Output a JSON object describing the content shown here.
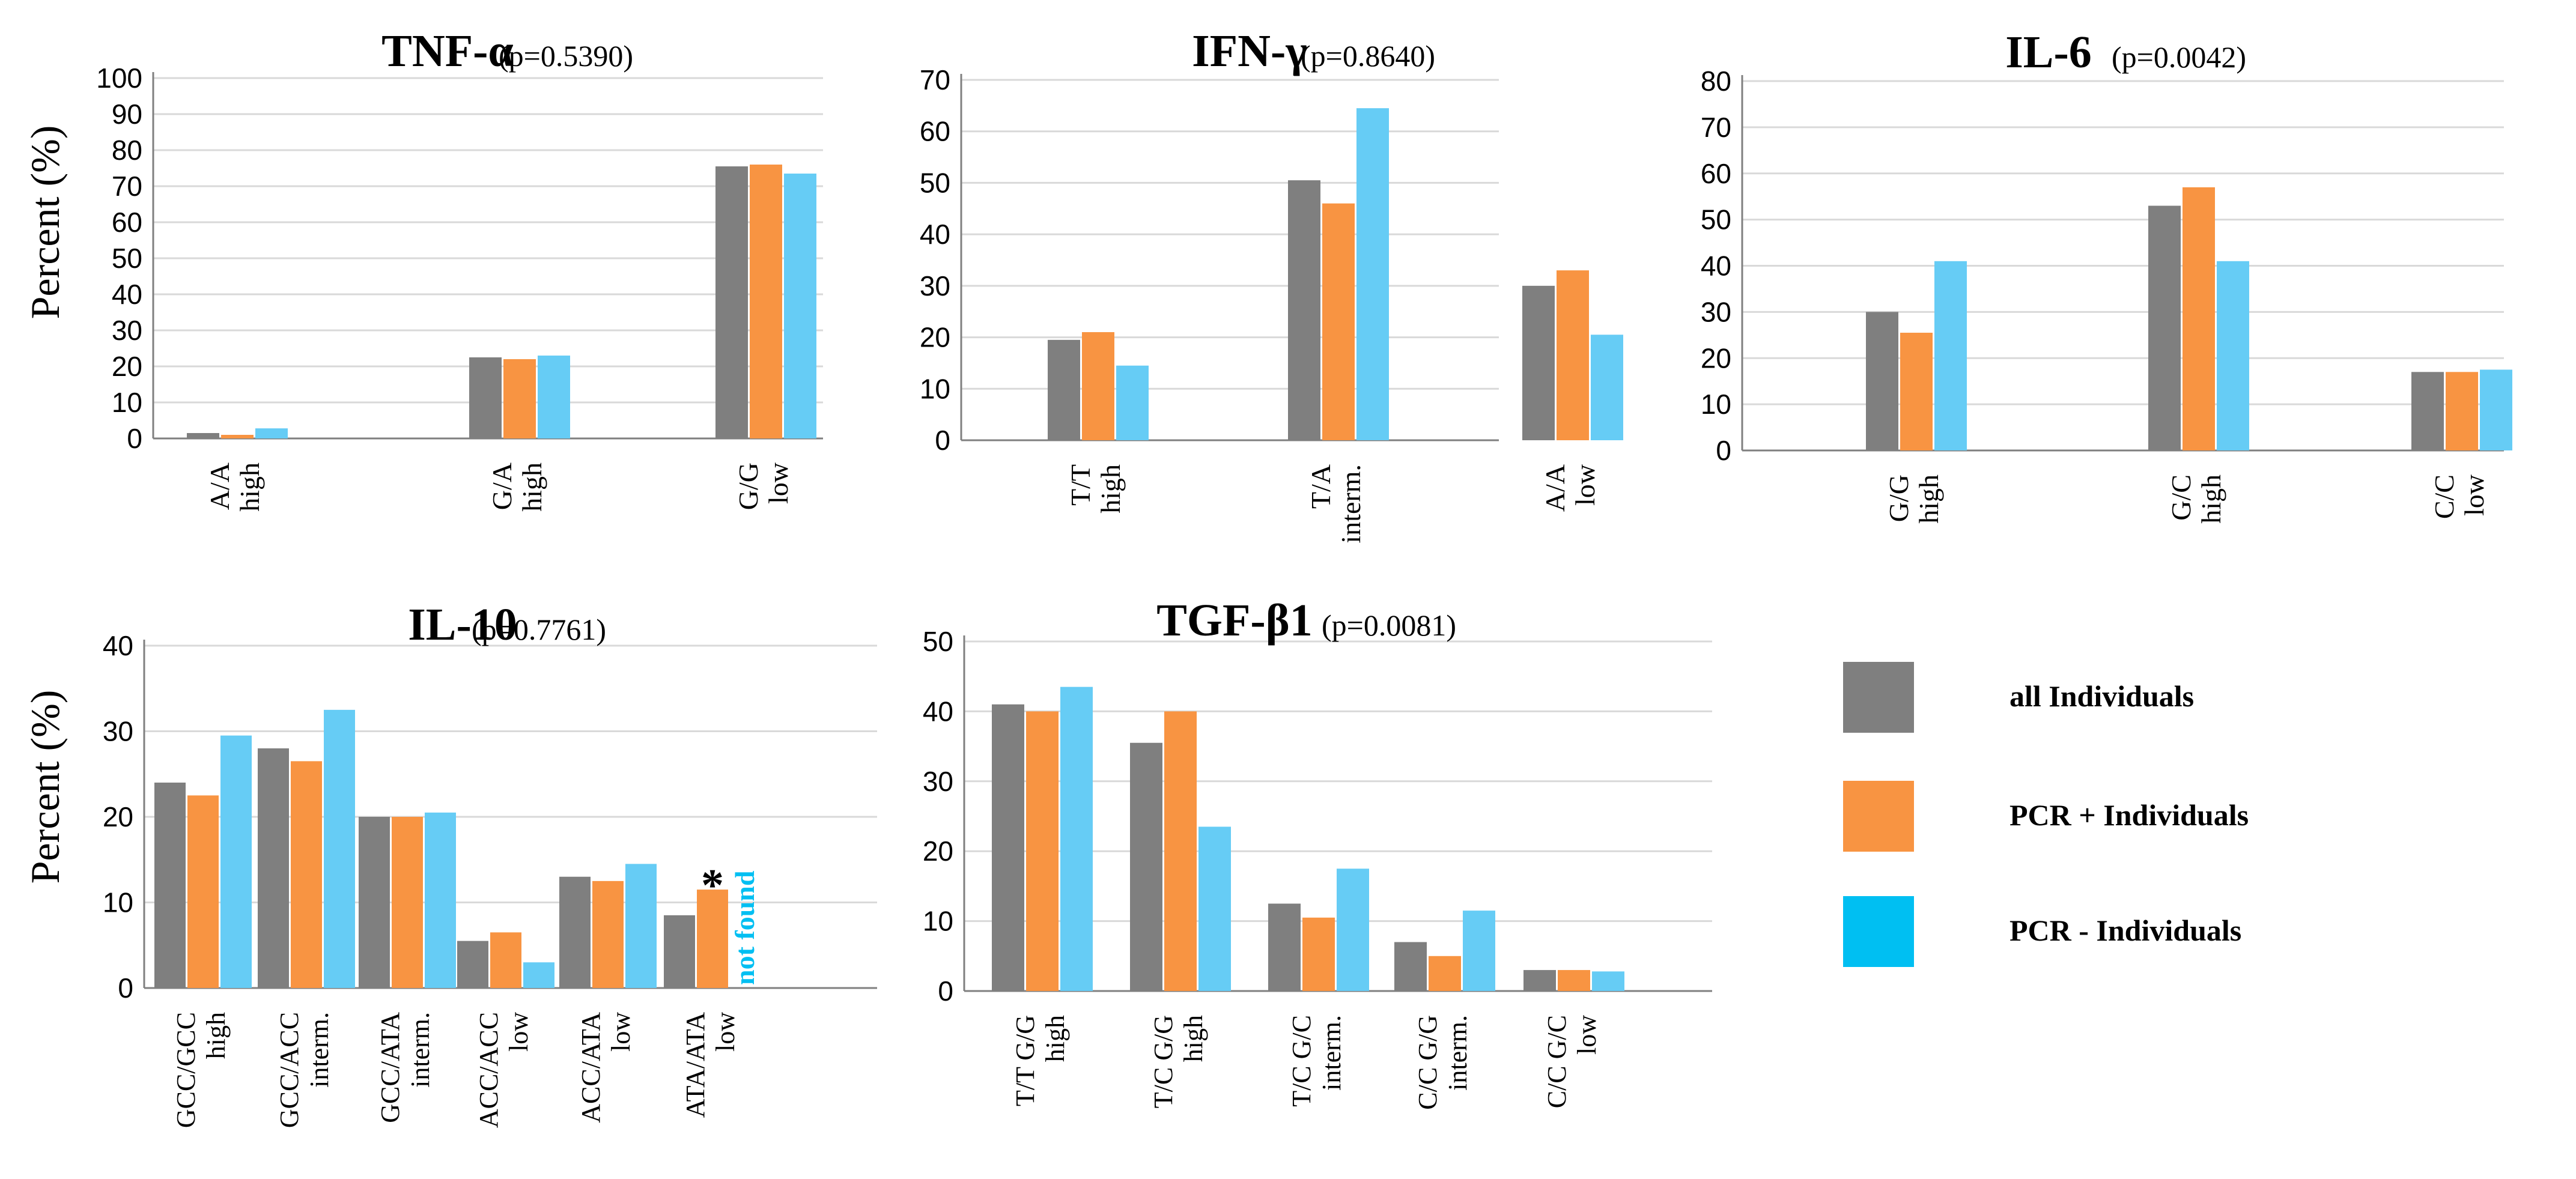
{
  "colors": {
    "all": "#7f7f7f",
    "pos": "#f89442",
    "neg": "#66ccf5",
    "neg_legend": "#00bff2",
    "grid": "#d9d9d9",
    "axis": "#7f7f7f",
    "text": "#000000"
  },
  "ylabel": "Percent (%)",
  "legend": {
    "items": [
      {
        "key": "all",
        "label": "all Individuals"
      },
      {
        "key": "pos",
        "label": "PCR + Individuals"
      },
      {
        "key": "neg",
        "label": "PCR - Individuals"
      }
    ]
  },
  "chart_data": [
    {
      "type": "bar",
      "title": "TNF-α",
      "pvalue": "(p=0.5390)",
      "ylim": [
        0,
        100
      ],
      "yticks": [
        0,
        10,
        20,
        30,
        40,
        50,
        60,
        70,
        80,
        90,
        100
      ],
      "grid": true,
      "categories": [
        [
          "A/A",
          "high"
        ],
        [
          "G/A",
          "high"
        ],
        [
          "G/G",
          "low"
        ]
      ],
      "series": [
        {
          "key": "all",
          "values": [
            1.5,
            22.5,
            75.5
          ]
        },
        {
          "key": "pos",
          "values": [
            1,
            22,
            76
          ]
        },
        {
          "key": "neg",
          "values": [
            2.8,
            23,
            73.5
          ]
        }
      ]
    },
    {
      "type": "bar",
      "title": "IFN-γ",
      "pvalue": "(p=0.8640)",
      "ylim": [
        0,
        70
      ],
      "yticks": [
        0,
        10,
        20,
        30,
        40,
        50,
        60,
        70
      ],
      "grid": true,
      "categories": [
        [
          "T/T",
          "high"
        ],
        [
          "T/A",
          "interm."
        ],
        [
          "A/A",
          "low"
        ]
      ],
      "series": [
        {
          "key": "all",
          "values": [
            19.5,
            50.5,
            30
          ]
        },
        {
          "key": "pos",
          "values": [
            21,
            46,
            33
          ]
        },
        {
          "key": "neg",
          "values": [
            14.5,
            64.5,
            20.5
          ]
        }
      ]
    },
    {
      "type": "bar",
      "title": "IL-6",
      "pvalue": "(p=0.0042)",
      "ylim": [
        0,
        80
      ],
      "yticks": [
        0,
        10,
        20,
        30,
        40,
        50,
        60,
        70,
        80
      ],
      "grid": true,
      "categories": [
        [
          "G/G",
          "high"
        ],
        [
          "G/C",
          "high"
        ],
        [
          "C/C",
          "low"
        ]
      ],
      "series": [
        {
          "key": "all",
          "values": [
            30,
            53,
            17
          ]
        },
        {
          "key": "pos",
          "values": [
            25.5,
            57,
            17
          ]
        },
        {
          "key": "neg",
          "values": [
            41,
            41,
            17.5
          ]
        }
      ]
    },
    {
      "type": "bar",
      "title": "IL-10",
      "pvalue": "(p=0.7761)",
      "ylim": [
        0,
        40
      ],
      "yticks": [
        0,
        10,
        20,
        30,
        40
      ],
      "grid": true,
      "categories": [
        [
          "GCC/GCC",
          "high"
        ],
        [
          "GCC/ACC",
          "interm."
        ],
        [
          "GCC/ATA",
          "interm."
        ],
        [
          "ACC/ACC",
          "low"
        ],
        [
          "ACC/ATA",
          "low"
        ],
        [
          "ATA/ATA",
          "low"
        ]
      ],
      "series": [
        {
          "key": "all",
          "values": [
            24,
            28,
            20,
            5.5,
            13,
            8.5
          ]
        },
        {
          "key": "pos",
          "values": [
            22.5,
            26.5,
            20,
            6.5,
            12.5,
            11.5
          ]
        },
        {
          "key": "neg",
          "values": [
            29.5,
            32.5,
            20.5,
            3,
            14.5,
            null
          ]
        }
      ],
      "annotations": {
        "star": "*",
        "not_found": "not found"
      }
    },
    {
      "type": "bar",
      "title": "TGF-β1",
      "pvalue": "(p=0.0081)",
      "ylim": [
        0,
        50
      ],
      "yticks": [
        0,
        10,
        20,
        30,
        40,
        50
      ],
      "grid": true,
      "categories": [
        [
          "T/T G/G",
          "high"
        ],
        [
          "T/C G/G",
          "high"
        ],
        [
          "T/C G/C",
          "interm."
        ],
        [
          "C/C G/G",
          "interm."
        ],
        [
          "C/C G/C",
          "low"
        ]
      ],
      "series": [
        {
          "key": "all",
          "values": [
            41,
            35.5,
            12.5,
            7,
            3
          ]
        },
        {
          "key": "pos",
          "values": [
            40,
            40,
            10.5,
            5,
            3
          ]
        },
        {
          "key": "neg",
          "values": [
            43.5,
            23.5,
            17.5,
            11.5,
            2.8
          ]
        }
      ]
    }
  ]
}
